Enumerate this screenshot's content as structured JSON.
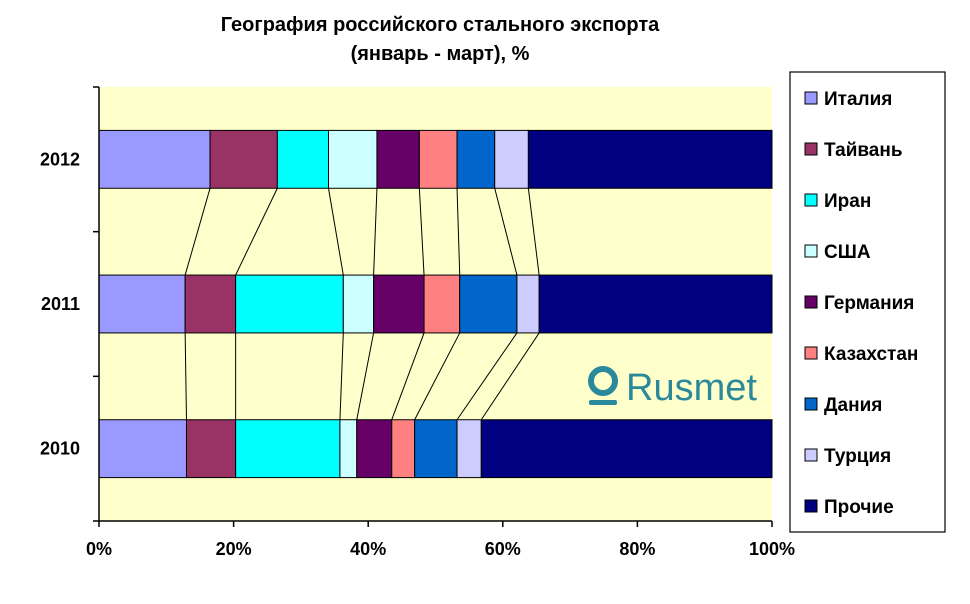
{
  "chart_data": {
    "type": "bar",
    "orientation": "horizontal",
    "stacked": "percent",
    "title": "География российского стального экспорта",
    "subtitle": "(январь - март), %",
    "categories": [
      "2012",
      "2011",
      "2010"
    ],
    "series": [
      {
        "name": "Италия",
        "color": "#9999ff",
        "values": [
          16.5,
          12.8,
          13.0
        ]
      },
      {
        "name": "Тайвань",
        "color": "#993366",
        "values": [
          10.0,
          7.5,
          7.3
        ]
      },
      {
        "name": "Иран",
        "color": "#00ffff",
        "values": [
          7.6,
          16.0,
          15.5
        ]
      },
      {
        "name": "США",
        "color": "#ccffff",
        "values": [
          7.2,
          4.5,
          2.5
        ]
      },
      {
        "name": "Германия",
        "color": "#660066",
        "values": [
          6.3,
          7.5,
          5.2
        ]
      },
      {
        "name": "Казахстан",
        "color": "#ff8080",
        "values": [
          5.6,
          5.3,
          3.4
        ]
      },
      {
        "name": "Дания",
        "color": "#0066cc",
        "values": [
          5.6,
          8.5,
          6.3
        ]
      },
      {
        "name": "Турция",
        "color": "#ccccff",
        "values": [
          5.0,
          3.3,
          3.6
        ]
      },
      {
        "name": "Прочие",
        "color": "#000080",
        "values": [
          36.2,
          34.6,
          43.2
        ]
      }
    ],
    "xlim": [
      0,
      100
    ],
    "xticks": [
      "0%",
      "20%",
      "40%",
      "60%",
      "80%",
      "100%"
    ],
    "plot_background": "#ffffcc",
    "series_lines": true,
    "legend_position": "right",
    "grid": false
  },
  "logo": {
    "text": "Rusmet",
    "color": "#2a8a9c"
  }
}
